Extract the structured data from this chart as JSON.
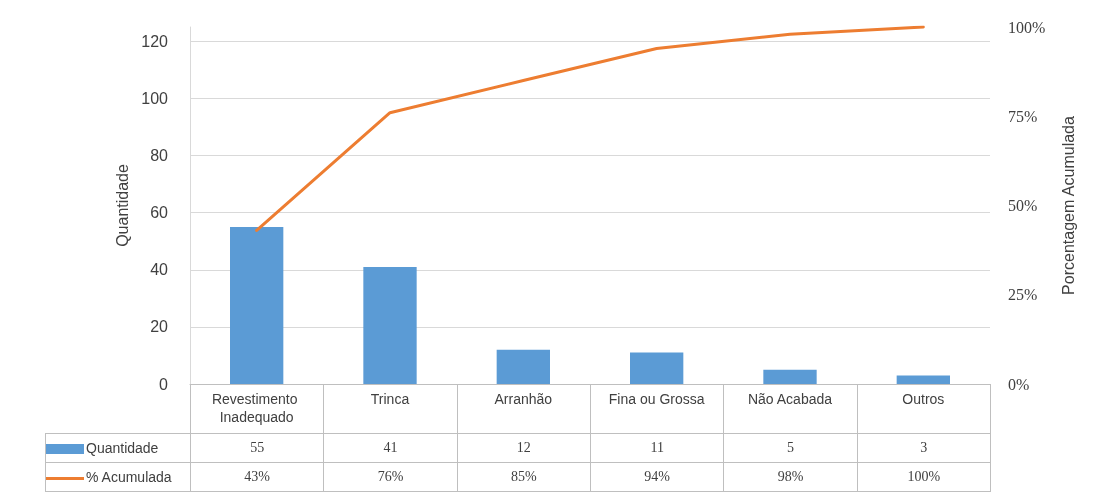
{
  "chart_data": {
    "type": "bar",
    "ylabel": "Quantidade",
    "y2label": "Porcentagem Acumulada",
    "categories": [
      "Revestimento Inadequado",
      "Trinca",
      "Arranhão",
      "Fina ou Grossa",
      "Não Acabada",
      "Outros"
    ],
    "series": [
      {
        "name": "Quantidade",
        "color": "#5b9bd5",
        "values": [
          55,
          41,
          12,
          11,
          5,
          3
        ],
        "value_labels": [
          "55",
          "41",
          "12",
          "11",
          "5",
          "3"
        ]
      },
      {
        "name": "% Acumulada",
        "type": "line",
        "axis": "y2",
        "color": "#ed7d31",
        "values": [
          43,
          76,
          85,
          94,
          98,
          100
        ],
        "value_labels": [
          "43%",
          "76%",
          "85%",
          "94%",
          "98%",
          "100%"
        ],
        "marker": "none"
      }
    ],
    "ylim": [
      0,
      125
    ],
    "yticks": [
      0,
      20,
      40,
      60,
      80,
      100,
      120
    ],
    "y2lim": [
      0,
      100
    ],
    "y2ticks": [
      {
        "value": 0,
        "label": "0%"
      },
      {
        "value": 25,
        "label": "25%"
      },
      {
        "value": 50,
        "label": "50%"
      },
      {
        "value": 75,
        "label": "75%"
      },
      {
        "value": 100,
        "label": "100%"
      }
    ],
    "grid": "y",
    "legend": "bottom"
  }
}
